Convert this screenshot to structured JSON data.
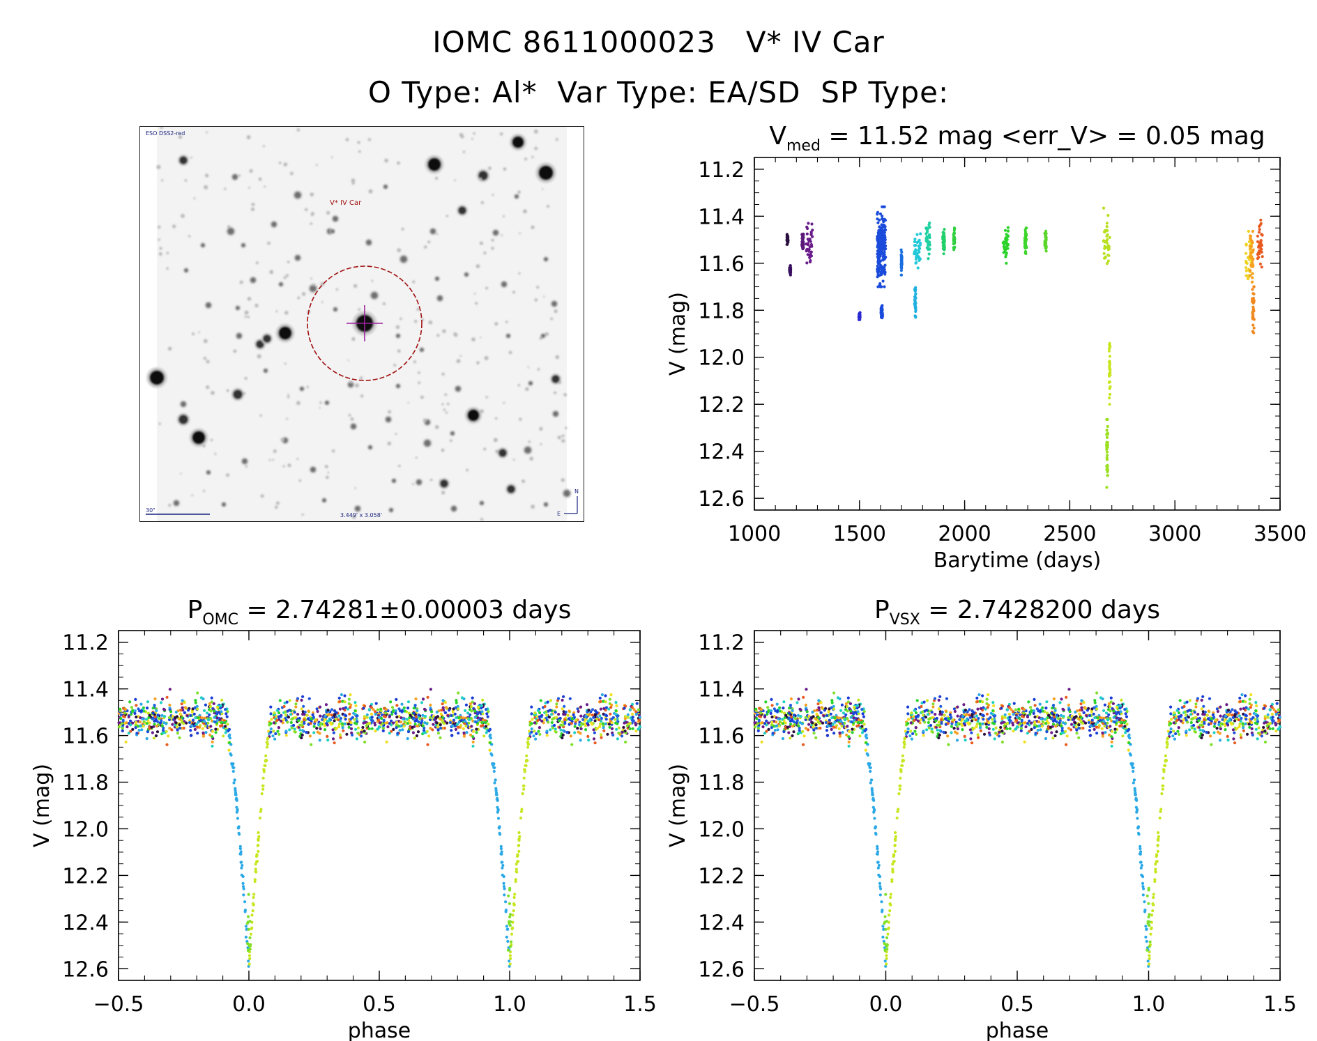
{
  "header": {
    "title_line1": "IOMC 8611000023   V* IV Car",
    "title_line2": "O Type: Al*  Var Type: EA/SD  SP Type:"
  },
  "finder_chart": {
    "survey_label": "ESO DSS2-red",
    "target_label": "V* IV Car",
    "scale_label": "30\"",
    "field_label": "3.449' x 3.058'",
    "north_label": "N",
    "east_label": "E"
  },
  "chart_data": [
    {
      "id": "lightcurve",
      "type": "scatter",
      "title_main": "V",
      "title_sub": "med",
      "title_rest": " = 11.52 mag <err_V> = 0.05 mag",
      "xlabel": "Barytime (days)",
      "ylabel": "V (mag)",
      "xlim": [
        1000,
        3500
      ],
      "ylim": [
        12.65,
        11.15
      ],
      "xticks": [
        "1000",
        "1500",
        "2000",
        "2500",
        "3000",
        "3500"
      ],
      "yticks": [
        "11.2",
        "11.4",
        "11.6",
        "11.8",
        "12.0",
        "12.2",
        "12.4",
        "12.6"
      ],
      "groups": [
        {
          "t": 1158,
          "w": 6,
          "m": [
            11.47,
            11.52
          ],
          "color": "#2a0f3f"
        },
        {
          "t": 1170,
          "w": 6,
          "m": [
            11.61,
            11.65
          ],
          "color": "#3a1060"
        },
        {
          "t": 1230,
          "w": 8,
          "m": [
            11.45,
            11.55
          ],
          "color": "#5a1a7a"
        },
        {
          "t": 1262,
          "w": 30,
          "m": [
            11.43,
            11.6
          ],
          "color": "#6a1b8a"
        },
        {
          "t": 1500,
          "w": 6,
          "m": [
            11.81,
            11.84
          ],
          "color": "#2a2ad0"
        },
        {
          "t": 1604,
          "w": 40,
          "m": [
            11.36,
            11.7
          ],
          "color": "#1a4bdb",
          "n": 220
        },
        {
          "t": 1606,
          "w": 8,
          "m": [
            11.78,
            11.84
          ],
          "color": "#1a4bdb"
        },
        {
          "t": 1700,
          "w": 4,
          "m": [
            11.53,
            11.65
          ],
          "color": "#1a6ee0"
        },
        {
          "t": 1765,
          "w": 6,
          "m": [
            11.7,
            11.83
          ],
          "color": "#20b0e0"
        },
        {
          "t": 1775,
          "w": 30,
          "m": [
            11.47,
            11.62
          ],
          "color": "#20c8d8"
        },
        {
          "t": 1825,
          "w": 20,
          "m": [
            11.41,
            11.58
          ],
          "color": "#20d0a0"
        },
        {
          "t": 1900,
          "w": 10,
          "m": [
            11.44,
            11.58
          ],
          "color": "#22d06a"
        },
        {
          "t": 1950,
          "w": 6,
          "m": [
            11.45,
            11.55
          ],
          "color": "#30d040"
        },
        {
          "t": 2195,
          "w": 25,
          "m": [
            11.44,
            11.6
          ],
          "color": "#2ad22a"
        },
        {
          "t": 2290,
          "w": 10,
          "m": [
            11.45,
            11.56
          ],
          "color": "#3cd62a"
        },
        {
          "t": 2385,
          "w": 8,
          "m": [
            11.44,
            11.56
          ],
          "color": "#5ad62a"
        },
        {
          "t": 2675,
          "w": 30,
          "m": [
            11.34,
            11.62
          ],
          "color": "#b8e020"
        },
        {
          "t": 2690,
          "w": 6,
          "m": [
            11.9,
            12.2
          ],
          "color": "#c8e620"
        },
        {
          "t": 2678,
          "w": 6,
          "m": [
            12.25,
            12.56
          ],
          "color": "#9ae020"
        },
        {
          "t": 3350,
          "w": 30,
          "m": [
            11.44,
            11.7
          ],
          "color": "#f0d020"
        },
        {
          "t": 3365,
          "w": 16,
          "m": [
            11.42,
            11.68
          ],
          "color": "#f7a020"
        },
        {
          "t": 3372,
          "w": 10,
          "m": [
            11.7,
            11.92
          ],
          "color": "#f08a20"
        },
        {
          "t": 3405,
          "w": 25,
          "m": [
            11.4,
            11.62
          ],
          "color": "#e85a20"
        }
      ]
    },
    {
      "id": "phase_omc",
      "type": "scatter",
      "title_main": "P",
      "title_sub": "OMC",
      "title_rest": " = 2.74281±0.00003 days",
      "xlabel": "phase",
      "ylabel": "V (mag)",
      "xlim": [
        -0.5,
        1.5
      ],
      "ylim": [
        12.65,
        11.15
      ],
      "xticks": [
        "−0.5",
        "0.0",
        "0.5",
        "1.0",
        "1.5"
      ],
      "yticks": [
        "11.2",
        "11.4",
        "11.6",
        "11.8",
        "12.0",
        "12.2",
        "12.4",
        "12.6"
      ]
    },
    {
      "id": "phase_vsx",
      "type": "scatter",
      "title_main": "P",
      "title_sub": "VSX",
      "title_rest": " = 2.7428200 days",
      "xlabel": "phase",
      "ylabel": "V (mag)",
      "xlim": [
        -0.5,
        1.5
      ],
      "ylim": [
        12.65,
        11.15
      ],
      "xticks": [
        "−0.5",
        "0.0",
        "0.5",
        "1.0",
        "1.5"
      ],
      "yticks": [
        "11.2",
        "11.4",
        "11.6",
        "11.8",
        "12.0",
        "12.2",
        "12.4",
        "12.6"
      ]
    }
  ],
  "colors": {
    "palette": [
      "#1a3bd6",
      "#1a4bdb",
      "#1f5fe0",
      "#2ba9e6",
      "#20d0c0",
      "#2ad22a",
      "#7fe02a",
      "#c8e620",
      "#f0e020",
      "#f7a020",
      "#e85a20",
      "#6a1b8a",
      "#2a0f3f"
    ],
    "finder_circle": "#a01010",
    "finder_cross": "#a020a0"
  }
}
